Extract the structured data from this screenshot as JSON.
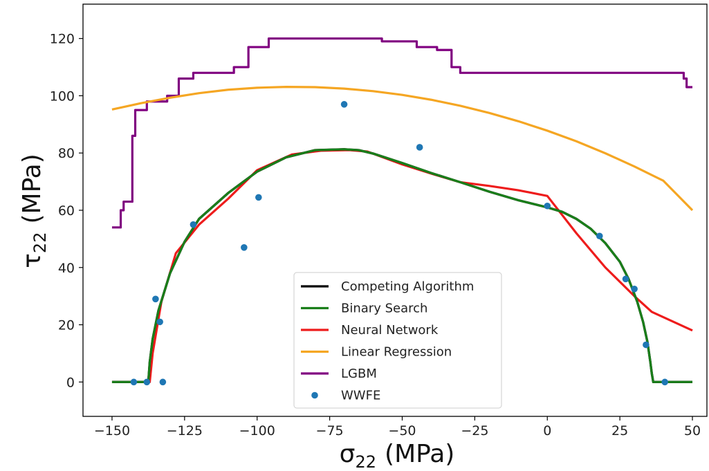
{
  "chart_data": {
    "type": "line",
    "xlabel": {
      "symbol": "σ",
      "subscript": "22",
      "unit": "(MPa)"
    },
    "ylabel": {
      "symbol": "τ",
      "subscript": "22",
      "unit": "(MPa)"
    },
    "xlim": [
      -160,
      55
    ],
    "ylim": [
      -12,
      132
    ],
    "xticks": [
      -150,
      -125,
      -100,
      -75,
      -50,
      -25,
      0,
      25,
      50
    ],
    "xtick_labels": [
      "−150",
      "−125",
      "−100",
      "−75",
      "−50",
      "−25",
      "0",
      "25",
      "50"
    ],
    "yticks": [
      0,
      20,
      40,
      60,
      80,
      100,
      120
    ],
    "ytick_labels": [
      "0",
      "20",
      "40",
      "60",
      "80",
      "100",
      "120"
    ],
    "grid": false,
    "legend_position": "bottom-center",
    "series": [
      {
        "name": "Competing Algorithm",
        "kind": "line",
        "color": "#000000",
        "x": [
          -150,
          -137.5,
          -137,
          -136,
          -134,
          -130,
          -125,
          -120,
          -110,
          -100,
          -90,
          -80,
          -70,
          -65,
          -60,
          -50,
          -40,
          -30,
          -20,
          -10,
          0,
          5,
          10,
          15,
          20,
          25,
          28,
          31,
          33,
          34.5,
          35.5,
          36,
          36.5,
          50
        ],
        "y": [
          0,
          0,
          7,
          15,
          25,
          38,
          49,
          57,
          66,
          73.5,
          78.5,
          81,
          81.3,
          81,
          79.8,
          76.5,
          73,
          69.8,
          66.5,
          63.5,
          61,
          59.5,
          57,
          53.5,
          48.5,
          42,
          36,
          28,
          21,
          14,
          7,
          3,
          0,
          0
        ]
      },
      {
        "name": "Binary Search",
        "kind": "line",
        "color": "#1a7f1a",
        "x": [
          -150,
          -137.5,
          -137,
          -136,
          -134,
          -130,
          -125,
          -120,
          -110,
          -100,
          -90,
          -80,
          -70,
          -65,
          -60,
          -50,
          -40,
          -30,
          -20,
          -10,
          0,
          5,
          10,
          15,
          20,
          25,
          28,
          31,
          33,
          34.5,
          35.5,
          36,
          36.5,
          50
        ],
        "y": [
          0,
          0,
          7,
          15,
          25,
          38,
          49,
          57,
          66,
          73.5,
          78.5,
          81,
          81.3,
          81,
          79.8,
          76.5,
          73,
          69.8,
          66.5,
          63.5,
          61,
          59.5,
          57,
          53.5,
          48.5,
          42,
          36,
          28,
          21,
          14,
          7,
          3,
          0,
          0
        ]
      },
      {
        "name": "Neural Network",
        "kind": "line",
        "color": "#ee1c1c",
        "x": [
          -150,
          -137,
          -136,
          -133,
          -128,
          -120,
          -110,
          -100,
          -88,
          -78,
          -68,
          -62,
          -50,
          -40,
          -30,
          -20,
          -10,
          0,
          10,
          20,
          30,
          36,
          50
        ],
        "y": [
          0,
          0,
          10,
          28,
          45,
          55,
          64,
          74,
          79.5,
          80.8,
          81,
          80.5,
          76,
          72.8,
          69.8,
          68.5,
          67,
          65,
          52,
          40,
          30,
          24.5,
          18
        ]
      },
      {
        "name": "Linear Regression",
        "kind": "line",
        "color": "#f5a623",
        "x": [
          -150,
          -140,
          -130,
          -120,
          -110,
          -100,
          -90,
          -80,
          -70,
          -60,
          -50,
          -40,
          -30,
          -20,
          -10,
          0,
          10,
          20,
          30,
          40,
          50
        ],
        "y": [
          95.2,
          97.4,
          99.3,
          100.9,
          102.1,
          102.8,
          103.1,
          103.0,
          102.5,
          101.6,
          100.3,
          98.6,
          96.5,
          94.0,
          91.1,
          87.8,
          84.1,
          79.9,
          75.3,
          70.3,
          60.0
        ]
      },
      {
        "name": "LGBM",
        "kind": "step",
        "color": "#800080",
        "x": [
          -150,
          -148,
          -147,
          -146,
          -144,
          -143,
          -142,
          -141,
          -139,
          -138,
          -137,
          -135,
          -131,
          -129,
          -127,
          -122,
          -110,
          -108,
          -103,
          -98,
          -96,
          -60,
          -57,
          -45,
          -40,
          -38,
          -34,
          -33,
          -30,
          -29,
          -28,
          0,
          10,
          20,
          30,
          47,
          48,
          49,
          50
        ],
        "y": [
          54,
          54,
          60,
          63,
          63,
          86,
          95,
          95,
          95,
          98,
          98,
          98,
          100,
          100,
          106,
          108,
          108,
          110,
          117,
          117,
          120,
          120,
          119,
          117,
          117,
          116,
          116,
          110,
          108,
          108,
          108,
          108,
          108,
          108,
          108,
          106,
          103,
          103,
          103
        ]
      },
      {
        "name": "WWFE",
        "kind": "scatter",
        "color": "#1f77b4",
        "x": [
          -142.5,
          -138,
          -135,
          -133.5,
          -132.5,
          -122,
          -104.5,
          -99.5,
          -70,
          -44,
          0,
          18,
          27,
          30,
          34,
          40.5
        ],
        "y": [
          0,
          0,
          29,
          21,
          0,
          55,
          47,
          64.5,
          97,
          82,
          61.5,
          51,
          36,
          32.5,
          13,
          0
        ]
      }
    ]
  }
}
